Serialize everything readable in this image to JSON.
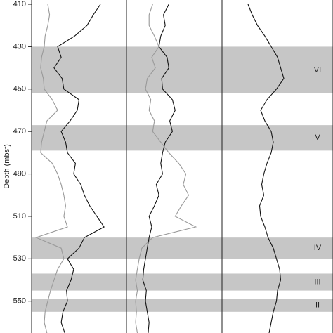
{
  "chart_data": {
    "type": "line",
    "y_label": "Depth (mbsf)",
    "ylim": [
      408,
      565
    ],
    "yticks": [
      410,
      430,
      450,
      470,
      490,
      510,
      530,
      550
    ],
    "xlim": [
      0,
      100
    ],
    "panel_count": 3,
    "depth": [
      410,
      415,
      420,
      425,
      430,
      435,
      440,
      445,
      450,
      455,
      460,
      465,
      470,
      475,
      480,
      485,
      490,
      495,
      500,
      505,
      510,
      515,
      520,
      525,
      530,
      535,
      540,
      545,
      550,
      555,
      560,
      565
    ],
    "series": [
      {
        "panel": 0,
        "color": "#111111",
        "values": [
          74,
          66,
          59,
          45,
          26,
          30,
          22,
          31,
          33,
          50,
          48,
          40,
          30,
          35,
          37,
          46,
          44,
          52,
          56,
          62,
          70,
          78,
          56,
          50,
          37,
          44,
          41,
          36,
          37,
          32,
          30,
          34
        ]
      },
      {
        "panel": 0,
        "color": "#999999",
        "values": [
          15,
          17,
          15,
          12,
          11,
          8,
          7,
          10,
          11,
          20,
          26,
          14,
          11,
          8,
          7,
          20,
          26,
          30,
          33,
          35,
          33,
          37,
          2,
          30,
          33,
          26,
          22,
          18,
          15,
          12,
          11,
          14
        ]
      },
      {
        "panel": 1,
        "color": "#999999",
        "values": [
          26,
          22,
          22,
          28,
          33,
          25,
          29,
          20,
          18,
          24,
          22,
          28,
          26,
          35,
          44,
          55,
          63,
          60,
          66,
          58,
          51,
          74,
          26,
          14,
          11,
          9,
          7,
          9,
          7,
          8,
          7,
          9
        ]
      },
      {
        "panel": 1,
        "color": "#111111",
        "values": [
          44,
          38,
          40,
          35,
          33,
          42,
          44,
          36,
          37,
          48,
          51,
          45,
          48,
          40,
          37,
          35,
          37,
          30,
          33,
          28,
          22,
          25,
          22,
          20,
          18,
          16,
          15,
          19,
          18,
          20,
          22,
          21
        ]
      },
      {
        "panel": 2,
        "color": "#111111",
        "values": [
          22,
          26,
          31,
          38,
          44,
          50,
          53,
          56,
          49,
          40,
          34,
          38,
          44,
          46,
          44,
          40,
          37,
          35,
          37,
          33,
          34,
          38,
          41,
          46,
          49,
          52,
          53,
          50,
          49,
          46,
          44,
          42
        ]
      }
    ],
    "bands": [
      {
        "from": 430,
        "to": 452,
        "label": "VI"
      },
      {
        "from": 467,
        "to": 479,
        "label": "V"
      },
      {
        "from": 520,
        "to": 530,
        "label": "IV"
      },
      {
        "from": 537,
        "to": 545,
        "label": "III"
      },
      {
        "from": 549,
        "to": 555,
        "label": "II"
      }
    ],
    "band_color": "#c6c6c6"
  }
}
